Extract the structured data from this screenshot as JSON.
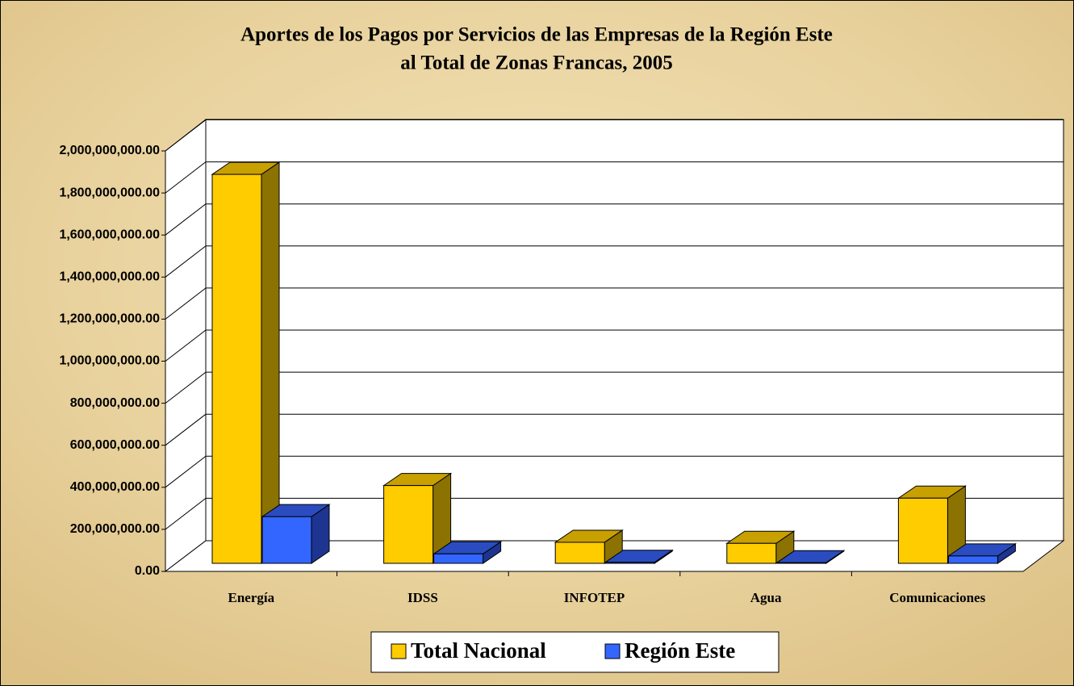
{
  "chart_data": {
    "type": "bar3d",
    "title": [
      "Aportes de los Pagos por Servicios de las Empresas de la Región Este",
      "al Total de Zonas Francas, 2005"
    ],
    "categories": [
      "Energía",
      "IDSS",
      "INFOTEP",
      "Agua",
      "Comunicaciones"
    ],
    "series": [
      {
        "name": "Total Nacional",
        "color": "#ffcc00",
        "values": [
          1850000000,
          370000000,
          100000000,
          95000000,
          310000000
        ]
      },
      {
        "name": "Región Este",
        "color": "#3366ff",
        "values": [
          222000000,
          45000000,
          5000000,
          3000000,
          35000000
        ]
      }
    ],
    "ylim": [
      0,
      2000000000
    ],
    "yticks": [
      {
        "value": 0,
        "label": "0.00"
      },
      {
        "value": 200000000,
        "label": "200,000,000.00"
      },
      {
        "value": 400000000,
        "label": "400,000,000.00"
      },
      {
        "value": 600000000,
        "label": "600,000,000.00"
      },
      {
        "value": 800000000,
        "label": "800,000,000.00"
      },
      {
        "value": 1000000000,
        "label": "1,000,000,000.00"
      },
      {
        "value": 1200000000,
        "label": "1,200,000,000.00"
      },
      {
        "value": 1400000000,
        "label": "1,400,000,000.00"
      },
      {
        "value": 1600000000,
        "label": "1,600,000,000.00"
      },
      {
        "value": 1800000000,
        "label": "1,800,000,000.00"
      },
      {
        "value": 2000000000,
        "label": "2,000,000,000.00"
      }
    ],
    "grid": true,
    "legend": "bottom"
  }
}
